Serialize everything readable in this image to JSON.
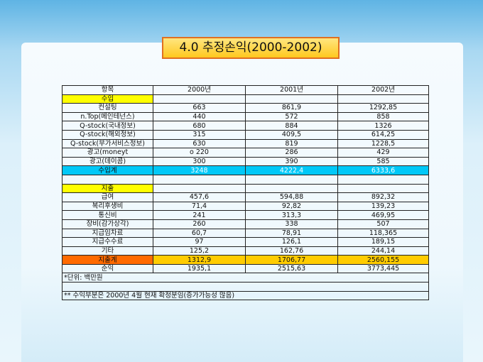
{
  "header": {
    "title": "4.0 추정손익(2000-2002)"
  },
  "table": {
    "header": [
      "항목",
      "2000년",
      "2001년",
      "2002년"
    ],
    "rows": [
      [
        "수입"
      ],
      [
        "컨설팅",
        "663",
        "861,9",
        "1292,85"
      ],
      [
        "n.Top(메인테넌스)",
        "440",
        "572",
        "858"
      ],
      [
        "Q-stock(국내정보)",
        "680",
        "884",
        "1326"
      ],
      [
        "Q-stock(해외정보)",
        "315",
        "409,5",
        "614,25"
      ],
      [
        "Q-stock(부가서비스정보)",
        "630",
        "819",
        "1228,5"
      ],
      [
        "광고(moneyt",
        "o 220",
        "286",
        "429"
      ],
      [
        "광고(데이콤)",
        "300",
        "390",
        "585"
      ],
      [
        "수입계",
        "3248",
        "4222,4",
        "6333,6"
      ],
      [
        "지출"
      ],
      [
        "급여",
        "457,6",
        "594,88",
        "892,32"
      ],
      [
        "복리후생비",
        "71,4",
        "92,82",
        "139,23"
      ],
      [
        "통신비",
        "241",
        "313,3",
        "469,95"
      ],
      [
        "장비(감가상각)",
        "260",
        "338",
        "507"
      ],
      [
        "지급임차료",
        "60,7",
        "78,91",
        "118,365"
      ],
      [
        "지급수수료",
        "97",
        "126,1",
        "189,15"
      ],
      [
        "기타",
        "125,2",
        "162,76",
        "244,14"
      ],
      [
        "지출계",
        "1312,9",
        "1706,77",
        "2560,155"
      ],
      [
        "순익",
        "1935,1",
        "2515,63",
        "3773,445"
      ]
    ],
    "notes": [
      "*단위: 백만원",
      "** 수익부분은 2000년 4월 현재 확정분임(증가가능성 많음)"
    ]
  }
}
